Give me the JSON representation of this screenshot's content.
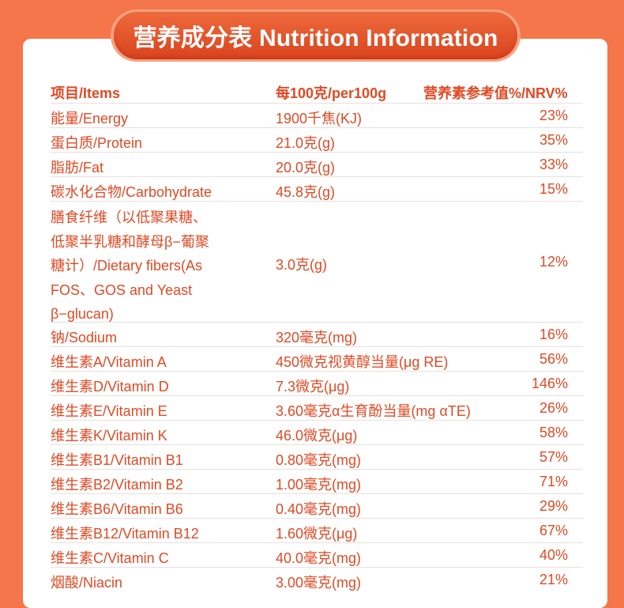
{
  "title": "营养成分表 Nutrition Information",
  "headers": {
    "item": "项目/Items",
    "amount": "每100克/per100g",
    "nrv": "营养素参考值%/NRV%"
  },
  "rows": [
    {
      "item": "能量/Energy",
      "amount": "1900千焦(KJ)",
      "nrv": "23%"
    },
    {
      "item": "蛋白质/Protein",
      "amount": "21.0克(g)",
      "nrv": "35%"
    },
    {
      "item": "脂肪/Fat",
      "amount": "20.0克(g)",
      "nrv": "33%"
    },
    {
      "item": "碳水化合物/Carbohydrate",
      "amount": "45.8克(g)",
      "nrv": "15%"
    }
  ],
  "fiber": {
    "lines": [
      "膳食纤维（以低聚果糖、",
      "低聚半乳糖和酵母β−葡聚",
      "糖计）/Dietary fibers(As",
      "FOS、GOS and Yeast",
      "β−glucan)"
    ],
    "amount": "3.0克(g)",
    "nrv": "12%"
  },
  "rows2": [
    {
      "item": "钠/Sodium",
      "amount": "320毫克(mg)",
      "nrv": "16%"
    },
    {
      "item": "维生素A/Vitamin A",
      "amount": "450微克视黄醇当量(μg RE)",
      "nrv": "56%"
    },
    {
      "item": "维生素D/Vitamin D",
      "amount": "7.3微克(μg)",
      "nrv": "146%"
    },
    {
      "item": "维生素E/Vitamin E",
      "amount": "3.60毫克α生育酚当量(mg αTE)",
      "nrv": "26%"
    },
    {
      "item": "维生素K/Vitamin K",
      "amount": "46.0微克(μg)",
      "nrv": "58%"
    },
    {
      "item": "维生素B1/Vitamin B1",
      "amount": "0.80毫克(mg)",
      "nrv": "57%"
    },
    {
      "item": "维生素B2/Vitamin B2",
      "amount": "1.00毫克(mg)",
      "nrv": "71%"
    },
    {
      "item": "维生素B6/Vitamin B6",
      "amount": "0.40毫克(mg)",
      "nrv": "29%"
    },
    {
      "item": "维生素B12/Vitamin B12",
      "amount": "1.60微克(μg)",
      "nrv": "67%"
    },
    {
      "item": "维生素C/Vitamin C",
      "amount": "40.0毫克(mg)",
      "nrv": "40%"
    },
    {
      "item": "烟酸/Niacin",
      "amount": "3.00毫克(mg)",
      "nrv": "21%"
    }
  ]
}
